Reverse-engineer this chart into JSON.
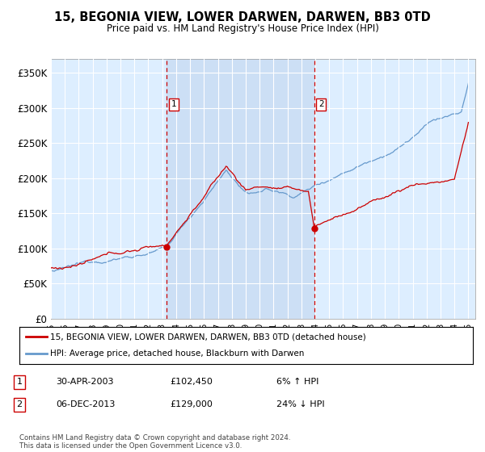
{
  "title": "15, BEGONIA VIEW, LOWER DARWEN, DARWEN, BB3 0TD",
  "subtitle": "Price paid vs. HM Land Registry's House Price Index (HPI)",
  "ylim": [
    0,
    370000
  ],
  "yticks": [
    0,
    50000,
    100000,
    150000,
    200000,
    250000,
    300000,
    350000
  ],
  "ytick_labels": [
    "£0",
    "£50K",
    "£100K",
    "£150K",
    "£200K",
    "£250K",
    "£300K",
    "£350K"
  ],
  "background_color": "#ffffff",
  "plot_bg_color": "#ddeeff",
  "grid_color": "#ffffff",
  "t1_year": 2003.33,
  "t1_price": 102450,
  "t2_year": 2013.92,
  "t2_price": 129000,
  "legend_line1": "15, BEGONIA VIEW, LOWER DARWEN, DARWEN, BB3 0TD (detached house)",
  "legend_line2": "HPI: Average price, detached house, Blackburn with Darwen",
  "table_row1": [
    "1",
    "30-APR-2003",
    "£102,450",
    "6% ↑ HPI"
  ],
  "table_row2": [
    "2",
    "06-DEC-2013",
    "£129,000",
    "24% ↓ HPI"
  ],
  "footer": "Contains HM Land Registry data © Crown copyright and database right 2024.\nThis data is licensed under the Open Government Licence v3.0.",
  "hpi_color": "#6699cc",
  "price_color": "#cc0000",
  "vline_color": "#cc0000",
  "shade_color": "#ccdff5"
}
